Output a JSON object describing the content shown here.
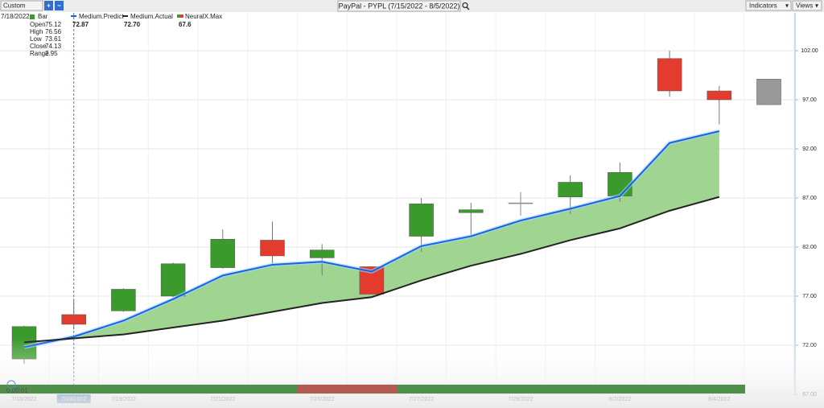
{
  "ui": {
    "toolbar": {
      "preset": "Custom",
      "add": "+",
      "remove": "−",
      "title": "PayPal - PYPL (7/15/2022 - 8/5/2022)",
      "indicators": "Indicators",
      "views": "Views"
    },
    "hover": {
      "date": "7/18/2022",
      "bar_label": "Bar",
      "fields": [
        {
          "label": "Open",
          "value": "75.12"
        },
        {
          "label": "High",
          "value": "76.56"
        },
        {
          "label": "Low",
          "value": "73.61"
        },
        {
          "label": "Close",
          "value": "74.13"
        },
        {
          "label": "Range",
          "value": "2.95"
        }
      ]
    },
    "legend": [
      {
        "name": "Medium.Predict",
        "value": "72.87"
      },
      {
        "name": "Medium.Actual",
        "value": "72.70"
      },
      {
        "name": "NeuralX.Max",
        "value": "67.6"
      }
    ],
    "player_time": "0:00:01"
  },
  "chart_data": {
    "type": "candlestick",
    "categories": [
      "7/15/2022",
      "7/18/2022",
      "7/19/2022",
      null,
      "7/21/2022",
      null,
      "7/25/2022",
      null,
      "7/27/2022",
      null,
      "7/29/2022",
      null,
      "8/2/2022",
      null,
      "8/4/2022",
      null
    ],
    "open": [
      70.6,
      75.12,
      75.5,
      77.0,
      79.9,
      82.7,
      80.9,
      80.0,
      83.1,
      85.5,
      86.5,
      87.1,
      87.2,
      101.2,
      97.9,
      99.1
    ],
    "high": [
      74.0,
      76.56,
      77.8,
      80.4,
      83.8,
      84.6,
      82.3,
      80.0,
      87.0,
      86.5,
      87.6,
      89.3,
      90.6,
      102.0,
      98.4,
      99.1
    ],
    "low": [
      70.1,
      73.61,
      75.4,
      76.9,
      79.8,
      80.3,
      79.1,
      77.2,
      81.5,
      83.2,
      85.2,
      85.4,
      86.6,
      97.3,
      94.5,
      96.5
    ],
    "close": [
      73.9,
      74.13,
      77.7,
      80.3,
      82.8,
      81.1,
      81.7,
      77.2,
      86.4,
      85.8,
      86.5,
      88.6,
      89.6,
      97.9,
      97.0,
      96.5
    ],
    "candle_colors": [
      "#3a9b2c",
      "#e33b2e",
      "#3a9b2c",
      "#3a9b2c",
      "#3a9b2c",
      "#e33b2e",
      "#3a9b2c",
      "#e33b2e",
      "#3a9b2c",
      "#3a9b2c",
      "#888888",
      "#3a9b2c",
      "#3a9b2c",
      "#e33b2e",
      "#e33b2e",
      "#999999"
    ],
    "series": [
      {
        "name": "Medium.Predict",
        "color": "#1565e0",
        "values": [
          71.8,
          72.87,
          74.5,
          76.7,
          79.1,
          80.2,
          80.5,
          79.5,
          82.1,
          83.1,
          84.7,
          85.9,
          87.2,
          92.6,
          93.8,
          null
        ]
      },
      {
        "name": "Medium.Actual",
        "color": "#222222",
        "values": [
          72.3,
          72.7,
          73.1,
          73.8,
          74.5,
          75.4,
          76.3,
          76.9,
          78.6,
          80.1,
          81.3,
          82.7,
          83.9,
          85.7,
          87.1,
          null
        ]
      }
    ],
    "fill_color": "#8fcc7e",
    "ylim": [
      67,
      105.4
    ],
    "yticks": [
      {
        "value": 67,
        "label": "67.00"
      },
      {
        "value": 72,
        "label": "72.00"
      },
      {
        "value": 77,
        "label": "77.00"
      },
      {
        "value": 82,
        "label": "82.00"
      },
      {
        "value": 87,
        "label": "87.00"
      },
      {
        "value": 92,
        "label": "92.00"
      },
      {
        "value": 97,
        "label": "97.00"
      },
      {
        "value": 102,
        "label": "102.00"
      }
    ],
    "grid": true,
    "highlight_index": 1
  }
}
